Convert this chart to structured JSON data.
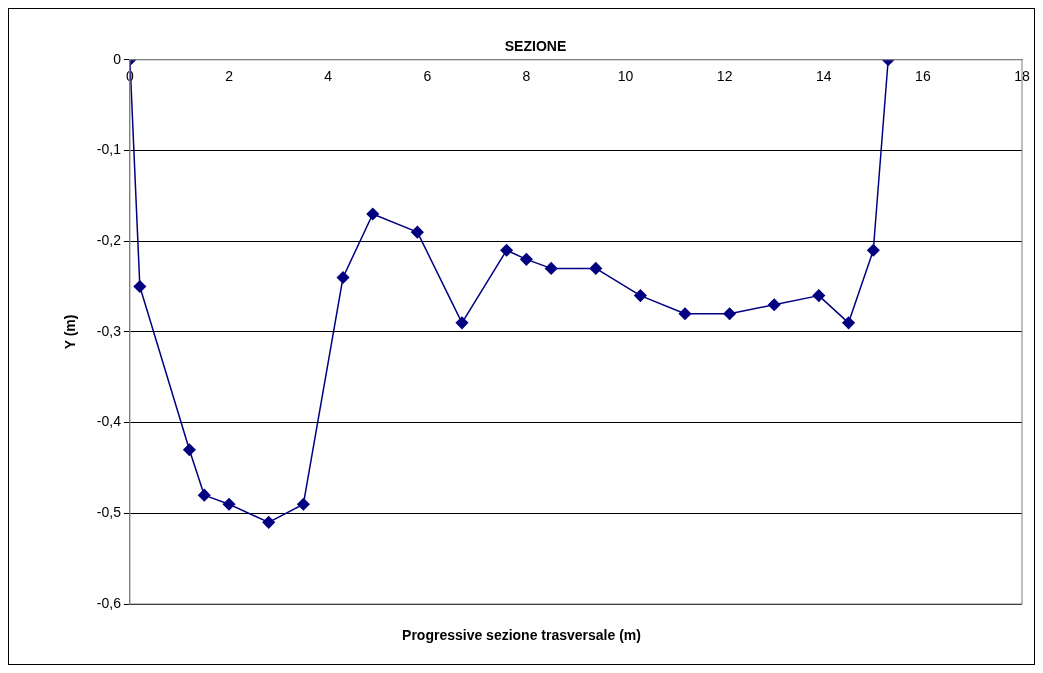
{
  "chart_data": {
    "type": "line",
    "title": "SEZIONE",
    "xlabel": "Progressive sezione trasversale (m)",
    "ylabel": "Y (m)",
    "x": [
      0,
      0.2,
      1.2,
      1.5,
      2,
      2.8,
      3.5,
      4.3,
      4.9,
      5.8,
      6.7,
      7.6,
      8,
      8.5,
      9.4,
      10.3,
      11.2,
      12.1,
      13,
      13.9,
      14.5,
      15,
      15.3
    ],
    "series": [
      {
        "color": "#000080",
        "values": [
          0,
          -0.25,
          -0.43,
          -0.48,
          -0.49,
          -0.51,
          -0.49,
          -0.24,
          -0.17,
          -0.19,
          -0.29,
          -0.21,
          -0.22,
          -0.23,
          -0.23,
          -0.26,
          -0.28,
          -0.28,
          -0.27,
          -0.26,
          -0.29,
          -0.21,
          0
        ]
      }
    ],
    "xlim": [
      0,
      18
    ],
    "xticks": [
      0,
      2,
      4,
      6,
      8,
      10,
      12,
      14,
      16,
      18
    ],
    "ylim": [
      -0.6,
      0
    ],
    "yticks": [
      {
        "value": -0.6,
        "label": "-0,6"
      },
      {
        "value": -0.5,
        "label": "-0,5"
      },
      {
        "value": -0.4,
        "label": "-0,4"
      },
      {
        "value": -0.3,
        "label": "-0,3"
      },
      {
        "value": -0.2,
        "label": "-0,2"
      },
      {
        "value": -0.1,
        "label": "-0,1"
      },
      0
    ],
    "grid": "y",
    "legend": false,
    "marker": "diamond",
    "line_style": "solid"
  }
}
